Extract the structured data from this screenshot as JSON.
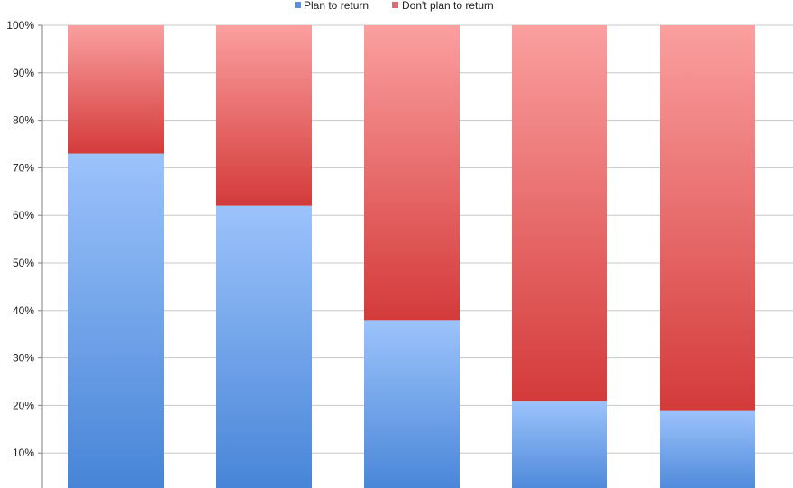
{
  "chart_data": {
    "type": "bar",
    "stacked": true,
    "percent": true,
    "categories": [
      "",
      "",
      "",
      "",
      ""
    ],
    "series": [
      {
        "name": "Plan to return",
        "values": [
          73,
          62,
          38,
          21,
          19
        ],
        "color": "#5b8fdc"
      },
      {
        "name": "Don't plan to return",
        "values": [
          27,
          38,
          62,
          79,
          81
        ],
        "color": "#e06a6a"
      }
    ],
    "yticks": [
      "10%",
      "20%",
      "30%",
      "40%",
      "50%",
      "60%",
      "70%",
      "80%",
      "90%",
      "100%"
    ],
    "ylim": [
      0,
      100
    ],
    "grid": true,
    "legend": "top-center"
  }
}
